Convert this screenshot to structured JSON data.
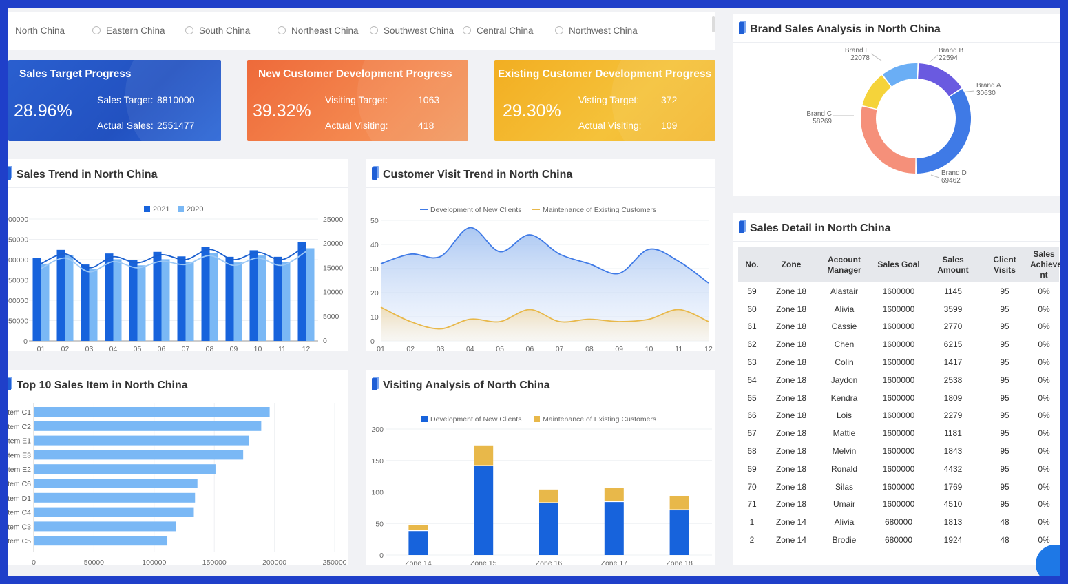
{
  "regions": [
    "North China",
    "Eastern China",
    "South China",
    "Northeast China",
    "Southwest China",
    "Central China",
    "Northwest China"
  ],
  "kpis": {
    "sales": {
      "title": "Sales Target Progress",
      "percent": "28.96%",
      "target_label": "Sales Target:",
      "target_value": "8810000",
      "actual_label": "Actual Sales:",
      "actual_value": "2551477"
    },
    "new_customer": {
      "title": "New Customer Development Progress",
      "percent": "39.32%",
      "target_label": "Visiting Target:",
      "target_value": "1063",
      "actual_label": "Actual Visiting:",
      "actual_value": "418"
    },
    "existing_customer": {
      "title": "Existing Customer Development Progress",
      "percent": "29.30%",
      "target_label": "Visting Target:",
      "target_value": "372",
      "actual_label": "Actual Visiting:",
      "actual_value": "109"
    }
  },
  "panels": {
    "sales_trend": "Sales Trend in North China",
    "visit_trend": "Customer Visit Trend in North China",
    "top10": "Top 10 Sales Item in North China",
    "visiting": "Visiting Analysis of North China",
    "brand": "Brand Sales Analysis in North China",
    "detail": "Sales Detail in North China"
  },
  "colors": {
    "primary": "#1763dc",
    "light": "#7ab8f5",
    "gold": "#e8b84a",
    "blue_card": "#2456c2",
    "orange_card": "#f07745",
    "yellow_card": "#f2b72a"
  },
  "chart_data": [
    {
      "id": "sales_trend",
      "type": "bar",
      "categories": [
        "01",
        "02",
        "03",
        "04",
        "05",
        "06",
        "07",
        "08",
        "09",
        "10",
        "11",
        "12"
      ],
      "series": [
        {
          "name": "2021",
          "values": [
            205000,
            224000,
            188000,
            215000,
            199000,
            219000,
            208000,
            232000,
            207000,
            223000,
            207000,
            243000
          ]
        },
        {
          "name": "2020",
          "values": [
            190000,
            211000,
            178000,
            201000,
            186000,
            201000,
            195000,
            216000,
            193000,
            210000,
            194000,
            228000
          ]
        }
      ],
      "trend_2021": [
        190000,
        214000,
        180000,
        207000,
        192000,
        212000,
        200000,
        225000,
        200000,
        218000,
        200000,
        236000
      ],
      "trend_2020": [
        178000,
        204000,
        170000,
        195000,
        180000,
        196000,
        188000,
        210000,
        186000,
        204000,
        186000,
        220000
      ],
      "y_left": {
        "ticks": [
          "0",
          "50000",
          "00000",
          "50000",
          "00000",
          "50000",
          "00000"
        ],
        "max": 300000
      },
      "y_right": {
        "ticks": [
          "0",
          "5000",
          "10000",
          "15000",
          "20000",
          "25000"
        ],
        "max": 25000
      },
      "legend": "top-center"
    },
    {
      "id": "visit_trend",
      "type": "area",
      "categories": [
        "01",
        "02",
        "03",
        "04",
        "05",
        "06",
        "07",
        "08",
        "09",
        "10",
        "11",
        "12"
      ],
      "series": [
        {
          "name": "Development of New Clients",
          "values": [
            32,
            36,
            35,
            47,
            37,
            44,
            36,
            32,
            28,
            38,
            33,
            24
          ]
        },
        {
          "name": "Maintenance of Existing Customers",
          "values": [
            14,
            8,
            5,
            9,
            8,
            13,
            8,
            9,
            8,
            9,
            13,
            8
          ]
        }
      ],
      "ylim": [
        0,
        50
      ],
      "y_ticks": [
        "0",
        "10",
        "20",
        "30",
        "40",
        "50"
      ],
      "legend": "top-center"
    },
    {
      "id": "top10",
      "type": "bar",
      "orientation": "horizontal",
      "categories": [
        "tem C1",
        "tem C2",
        "tem E1",
        "tem E3",
        "tem E2",
        "tem C6",
        "tem D1",
        "tem C4",
        "tem C3",
        "tem C5"
      ],
      "values": [
        196000,
        189000,
        179000,
        174000,
        151000,
        136000,
        134000,
        133000,
        118000,
        111000
      ],
      "xlim": [
        0,
        250000
      ],
      "x_ticks": [
        "0",
        "50000",
        "100000",
        "150000",
        "200000",
        "250000"
      ]
    },
    {
      "id": "visiting",
      "type": "bar",
      "stacked": true,
      "categories": [
        "Zone 14",
        "Zone 15",
        "Zone 16",
        "Zone 17",
        "Zone 18"
      ],
      "series": [
        {
          "name": "Development of New Clients",
          "values": [
            38,
            141,
            82,
            84,
            71
          ]
        },
        {
          "name": "Maintenance of Existing Customers",
          "values": [
            9,
            33,
            22,
            22,
            23
          ]
        }
      ],
      "ylim": [
        0,
        200
      ],
      "y_ticks": [
        "0",
        "50",
        "100",
        "150",
        "200"
      ],
      "legend": "top-center"
    },
    {
      "id": "brand",
      "type": "pie",
      "donut": true,
      "slices": [
        {
          "name": "Brand A",
          "value": 30630,
          "color": "#6a5ae0"
        },
        {
          "name": "Brand D",
          "value": 69462,
          "color": "#3f7ae6"
        },
        {
          "name": "Brand C",
          "value": 58269,
          "color": "#f5907a"
        },
        {
          "name": "Brand E",
          "value": 22078,
          "color": "#f5d33a"
        },
        {
          "name": "Brand B",
          "value": 22594,
          "color": "#6aaef5"
        }
      ]
    }
  ],
  "table": {
    "headers": [
      "No.",
      "Zone",
      "Account Manager",
      "Sales Goal",
      "Sales Amount",
      "Client Visits",
      "Sales Achievement"
    ],
    "header_display": [
      "No.",
      "Zone",
      "Account\nManager",
      "Sales Goal",
      "Sales\nAmount",
      "Client Visits",
      "Sales\nAchieve\nnt"
    ],
    "rows": [
      [
        "59",
        "Zone 18",
        "Alastair",
        "1600000",
        "1145",
        "95",
        "0%"
      ],
      [
        "60",
        "Zone 18",
        "Alivia",
        "1600000",
        "3599",
        "95",
        "0%"
      ],
      [
        "61",
        "Zone 18",
        "Cassie",
        "1600000",
        "2770",
        "95",
        "0%"
      ],
      [
        "62",
        "Zone 18",
        "Chen",
        "1600000",
        "6215",
        "95",
        "0%"
      ],
      [
        "63",
        "Zone 18",
        "Colin",
        "1600000",
        "1417",
        "95",
        "0%"
      ],
      [
        "64",
        "Zone 18",
        "Jaydon",
        "1600000",
        "2538",
        "95",
        "0%"
      ],
      [
        "65",
        "Zone 18",
        "Kendra",
        "1600000",
        "1809",
        "95",
        "0%"
      ],
      [
        "66",
        "Zone 18",
        "Lois",
        "1600000",
        "2279",
        "95",
        "0%"
      ],
      [
        "67",
        "Zone 18",
        "Mattie",
        "1600000",
        "1181",
        "95",
        "0%"
      ],
      [
        "68",
        "Zone 18",
        "Melvin",
        "1600000",
        "1843",
        "95",
        "0%"
      ],
      [
        "69",
        "Zone 18",
        "Ronald",
        "1600000",
        "4432",
        "95",
        "0%"
      ],
      [
        "70",
        "Zone 18",
        "Silas",
        "1600000",
        "1769",
        "95",
        "0%"
      ],
      [
        "71",
        "Zone 18",
        "Umair",
        "1600000",
        "4510",
        "95",
        "0%"
      ],
      [
        "1",
        "Zone 14",
        "Alivia",
        "680000",
        "1813",
        "48",
        "0%"
      ],
      [
        "2",
        "Zone 14",
        "Brodie",
        "680000",
        "1924",
        "48",
        "0%"
      ]
    ]
  },
  "icons": {
    "chat": "chat-bot-icon"
  }
}
